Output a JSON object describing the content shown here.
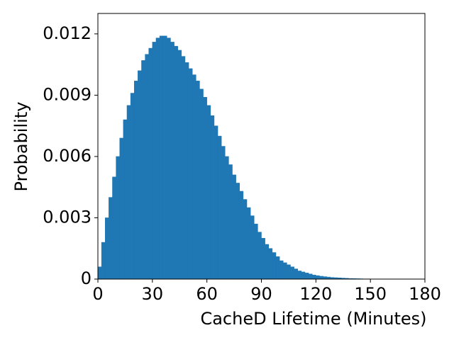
{
  "chart_data": {
    "type": "histogram",
    "xlabel": "CacheD Lifetime (Minutes)",
    "ylabel": "Probability",
    "color": "#1f77b4",
    "bins": [
      0,
      2,
      4,
      6,
      8,
      10,
      12,
      14,
      16,
      18,
      20,
      22,
      24,
      26,
      28,
      30,
      32,
      34,
      36,
      38,
      40,
      42,
      44,
      46,
      48,
      50,
      52,
      54,
      56,
      58,
      60,
      62,
      64,
      66,
      68,
      70,
      72,
      74,
      76,
      78,
      80,
      82,
      84,
      86,
      88,
      90,
      92,
      94,
      96,
      98,
      100,
      102,
      104,
      106,
      108,
      110,
      112,
      114,
      116,
      118,
      120,
      122,
      124,
      126,
      128,
      130,
      132,
      134,
      136,
      138,
      140,
      142,
      144,
      146,
      148,
      150,
      152,
      154,
      156
    ],
    "counts": [
      0.0006,
      0.0018,
      0.003,
      0.004,
      0.005,
      0.006,
      0.0069,
      0.0078,
      0.0085,
      0.0091,
      0.0097,
      0.0102,
      0.0107,
      0.011,
      0.0113,
      0.0116,
      0.0118,
      0.0119,
      0.0119,
      0.0118,
      0.0116,
      0.0114,
      0.0112,
      0.0109,
      0.0106,
      0.0103,
      0.01,
      0.0097,
      0.0093,
      0.0089,
      0.0085,
      0.008,
      0.0075,
      0.007,
      0.0065,
      0.006,
      0.0056,
      0.0051,
      0.0047,
      0.0043,
      0.0039,
      0.0035,
      0.0031,
      0.0027,
      0.0023,
      0.002,
      0.0017,
      0.0015,
      0.0013,
      0.0011,
      0.0009,
      0.0008,
      0.0007,
      0.0006,
      0.0005,
      0.0004,
      0.00035,
      0.0003,
      0.00025,
      0.0002,
      0.00017,
      0.00014,
      0.00012,
      0.0001,
      8e-05,
      7e-05,
      6e-05,
      5e-05,
      4e-05,
      3e-05,
      2.5e-05,
      2e-05,
      1.5e-05,
      1e-05,
      1e-05,
      8e-06,
      5e-06,
      4e-06
    ],
    "xlim": [
      0,
      180
    ],
    "xticks": [
      0,
      30,
      60,
      90,
      120,
      150,
      180
    ],
    "ylim": [
      0,
      0.013
    ],
    "yticks": [
      0,
      0.003,
      0.006,
      0.009,
      0.012
    ]
  }
}
